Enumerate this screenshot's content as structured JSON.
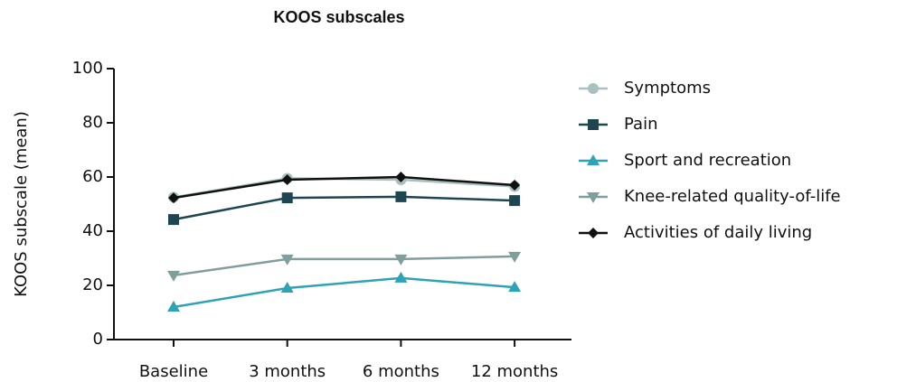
{
  "chart_data": {
    "type": "line",
    "title": "KOOS subscales",
    "y_label": "KOOS subscale (mean)",
    "categories": [
      "Baseline",
      "3 months",
      "6 months",
      "12 months"
    ],
    "ylim": [
      0,
      100
    ],
    "yticks": [
      0,
      20,
      40,
      60,
      80,
      100
    ],
    "series": [
      {
        "name": "Symptoms",
        "color": "#a9c0c0",
        "marker": "circle",
        "values": [
          52.5,
          59.5,
          59,
          56.5
        ]
      },
      {
        "name": "Pain",
        "color": "#1d4650",
        "marker": "square",
        "values": [
          44.3,
          52.3,
          52.7,
          51.3
        ]
      },
      {
        "name": "Sport and recreation",
        "color": "#2ea3b5",
        "marker": "triangle-up",
        "values": [
          12,
          19,
          22.7,
          19.3
        ]
      },
      {
        "name": "Knee-related quality-of-life",
        "color": "#7f9e9c",
        "marker": "triangle-down",
        "values": [
          23.7,
          29.7,
          29.7,
          30.7
        ]
      },
      {
        "name": "Activities of daily living",
        "color": "#111111",
        "marker": "diamond",
        "values": [
          52.3,
          59,
          60,
          57
        ]
      }
    ]
  }
}
